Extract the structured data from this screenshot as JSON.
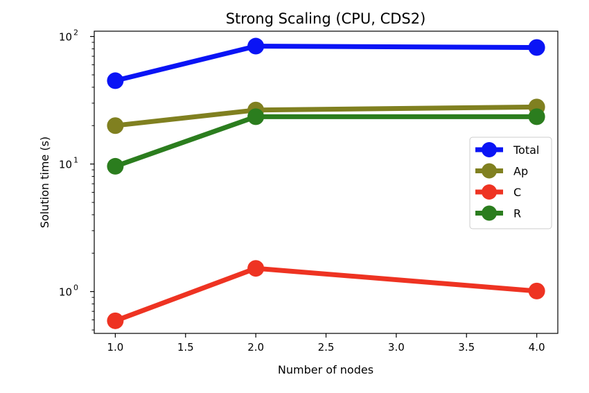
{
  "chart_data": {
    "type": "line",
    "title": "Strong Scaling (CPU, CDS2)",
    "xlabel": "Number of nodes",
    "ylabel": "Solution time (s)",
    "xlim": [
      0.85,
      4.15
    ],
    "ylim": [
      0.47,
      110
    ],
    "yscale": "log",
    "x_ticks": [
      1.0,
      1.5,
      2.0,
      2.5,
      3.0,
      3.5,
      4.0
    ],
    "x_tick_labels": [
      "1.0",
      "1.5",
      "2.0",
      "2.5",
      "3.0",
      "3.5",
      "4.0"
    ],
    "y_ticks": [
      1,
      10,
      100
    ],
    "y_tick_labels": [
      {
        "base": "10",
        "exp": "0"
      },
      {
        "base": "10",
        "exp": "1"
      },
      {
        "base": "10",
        "exp": "2"
      }
    ],
    "grid": false,
    "legend_position": "center-right",
    "x": [
      1,
      2,
      4
    ],
    "series": [
      {
        "name": "Total",
        "color": "#0a14f5",
        "values": [
          45,
          84,
          82
        ]
      },
      {
        "name": "Ap",
        "color": "#808020",
        "values": [
          20,
          26.5,
          28
        ]
      },
      {
        "name": "C",
        "color": "#ee3322",
        "values": [
          0.59,
          1.52,
          1.01
        ]
      },
      {
        "name": "R",
        "color": "#2b7d1e",
        "values": [
          9.6,
          23.5,
          23.5
        ]
      }
    ]
  }
}
